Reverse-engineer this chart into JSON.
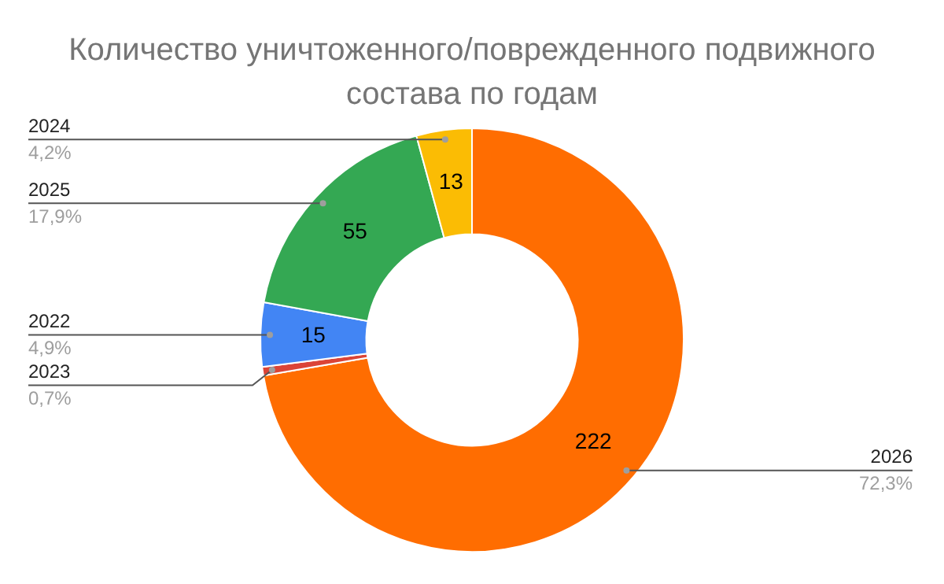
{
  "chart_data": {
    "type": "donut",
    "title": "Количество уничтоженного/поврежденного подвижного состава по годам",
    "categories": [
      "2026",
      "2023",
      "2022",
      "2025",
      "2024"
    ],
    "values": [
      222,
      2,
      15,
      55,
      13
    ],
    "colors": [
      "#ff6d01",
      "#db4437",
      "#4285f4",
      "#34a853",
      "#fbbc04"
    ],
    "value_labels": [
      "222",
      null,
      "15",
      "55",
      "13"
    ],
    "annotations": [
      "72,3%",
      "0,7%",
      "4,9%",
      "17,9%",
      "4,2%"
    ],
    "legend": false
  }
}
